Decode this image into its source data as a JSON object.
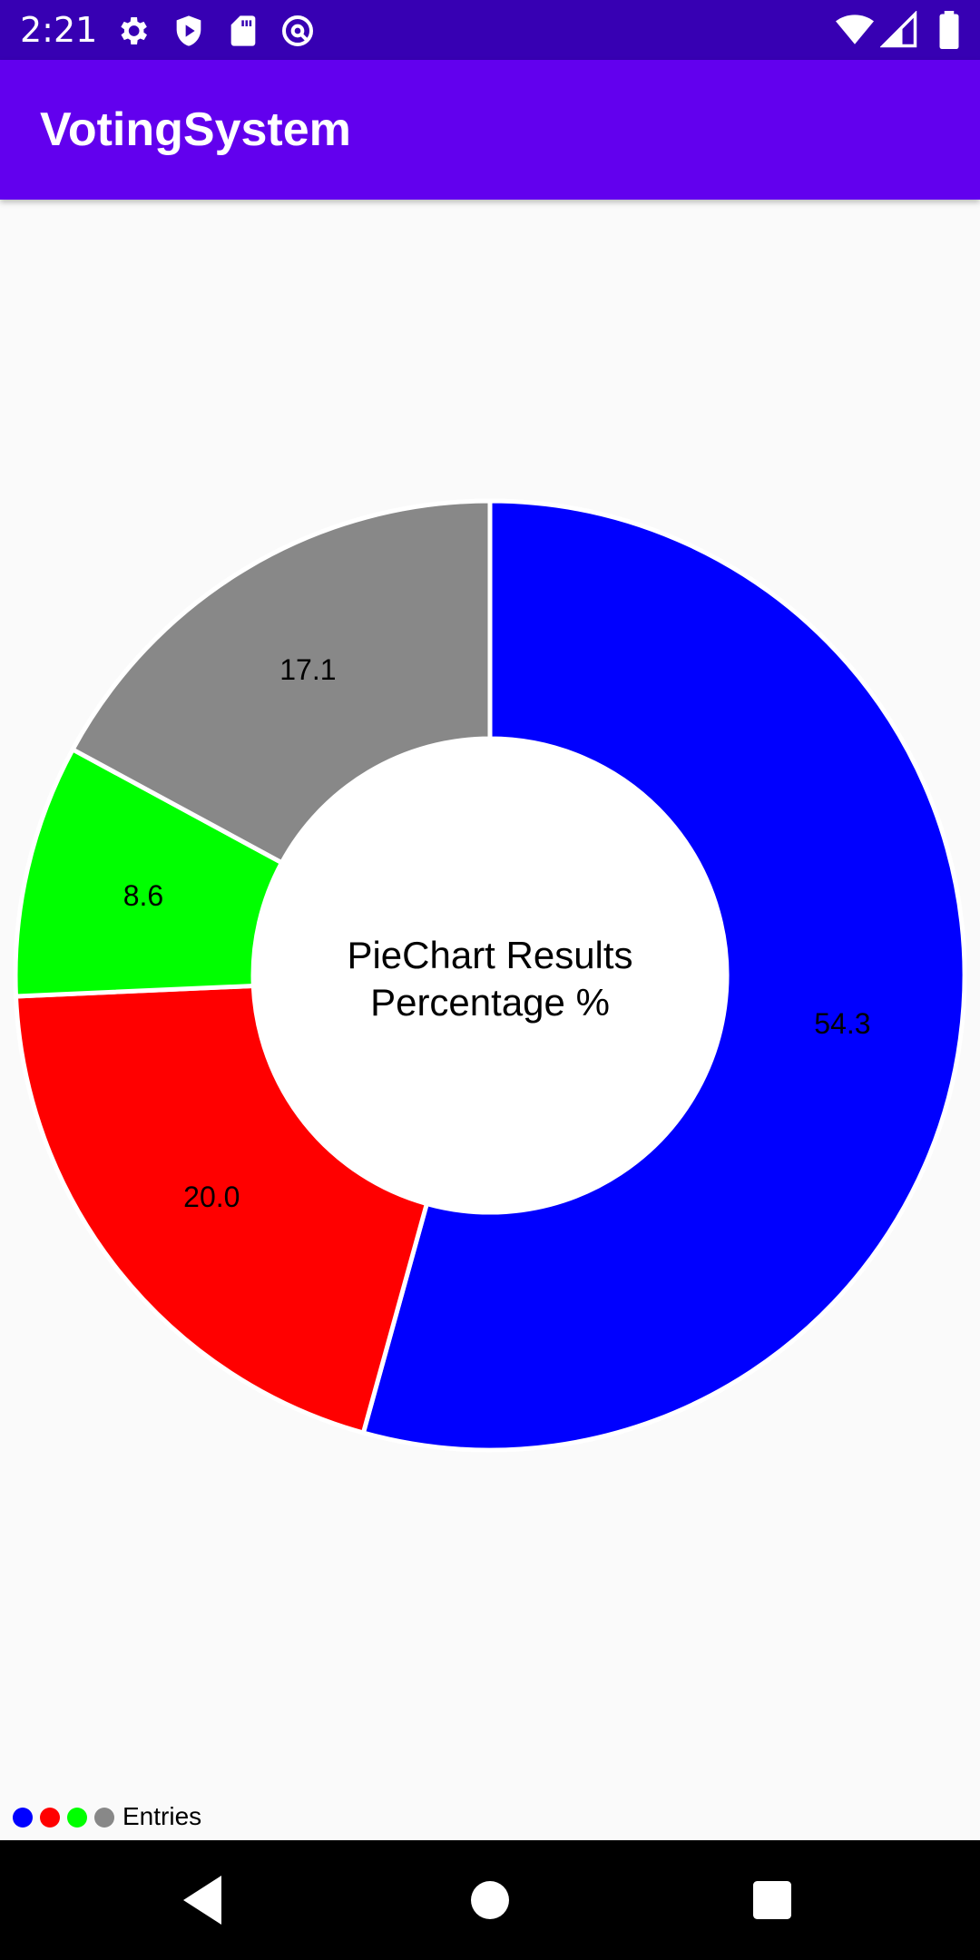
{
  "status_bar": {
    "time": "2:21",
    "left_icons": [
      "gear-icon",
      "shield-play-icon",
      "sd-card-icon",
      "at-sign-icon"
    ],
    "right_icons": [
      "wifi-icon",
      "cell-signal-icon",
      "battery-icon"
    ]
  },
  "app_bar": {
    "title": "VotingSystem"
  },
  "chart_data": {
    "type": "pie",
    "donut": true,
    "center_text": [
      "PieChart Results",
      "Percentage %"
    ],
    "slices": [
      {
        "value": 54.3,
        "label": "54.3",
        "color": "#0000ff"
      },
      {
        "value": 20.0,
        "label": "20.0",
        "color": "#ff0000"
      },
      {
        "value": 8.6,
        "label": "8.6",
        "color": "#00ff00"
      },
      {
        "value": 17.1,
        "label": "17.1",
        "color": "#888888"
      }
    ],
    "legend": {
      "label": "Entries",
      "placement": "bottom-left",
      "colors": [
        "#0000ff",
        "#ff0000",
        "#00ff00",
        "#888888"
      ]
    }
  },
  "nav_bar": {
    "buttons": [
      "back-icon",
      "home-icon",
      "recents-icon"
    ]
  },
  "colors": {
    "status_bar": "#3700b3",
    "app_bar": "#6200ee",
    "background": "#fafafa"
  }
}
